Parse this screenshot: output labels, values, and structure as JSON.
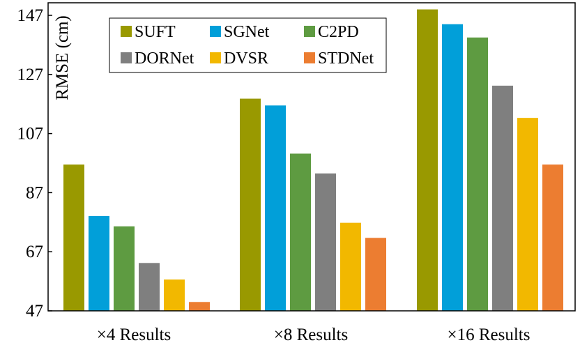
{
  "chart_data": {
    "type": "bar",
    "ylabel": "RMSE (cm)",
    "xlabel": "",
    "title": "",
    "ylim": [
      47,
      148
    ],
    "yticks": [
      47,
      67,
      87,
      107,
      127,
      147
    ],
    "categories": [
      "×4 Results",
      "×8 Results",
      "×16 Results"
    ],
    "series": [
      {
        "name": "SUFT",
        "color": "#999900",
        "values": [
          96.5,
          118.8,
          149.0
        ]
      },
      {
        "name": "SGNet",
        "color": "#019FD9",
        "values": [
          79.1,
          116.5,
          144.0
        ]
      },
      {
        "name": "C2PD",
        "color": "#5E9B41",
        "values": [
          75.6,
          100.2,
          139.5
        ]
      },
      {
        "name": "DORNet",
        "color": "#7F7F7F",
        "values": [
          63.2,
          93.5,
          123.2
        ]
      },
      {
        "name": "DVSR",
        "color": "#F2B800",
        "values": [
          57.6,
          76.8,
          112.3
        ]
      },
      {
        "name": "STDNet",
        "color": "#EC7D31",
        "values": [
          50.0,
          71.7,
          96.5
        ]
      }
    ],
    "legend": {
      "position": "top-left",
      "columns": 3
    },
    "grid": false
  }
}
